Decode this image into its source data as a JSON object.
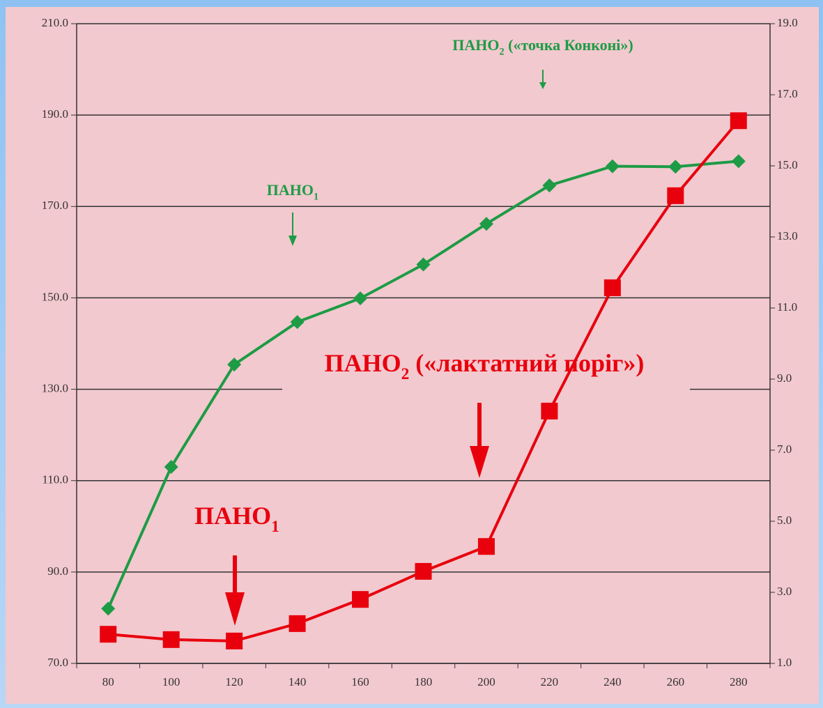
{
  "chart_data": {
    "type": "line",
    "categories": [
      "80",
      "100",
      "120",
      "140",
      "160",
      "180",
      "200",
      "220",
      "240",
      "260",
      "280"
    ],
    "series": [
      {
        "color": "#1d9b45",
        "axis": "y",
        "marker": "diamond",
        "values": [
          82,
          113,
          135.4,
          144.7,
          149.9,
          157.3,
          166.2,
          174.6,
          178.8,
          178.7,
          179.9
        ]
      },
      {
        "color": "#e8000d",
        "axis": "y2",
        "marker": "square",
        "values": [
          1.82,
          1.67,
          1.63,
          2.12,
          2.8,
          3.59,
          4.29,
          8.1,
          11.57,
          14.16,
          16.27
        ]
      }
    ],
    "ylim": [
      70,
      210
    ],
    "yticks": [
      {
        "value": 70,
        "label": "70.0"
      },
      {
        "value": 90,
        "label": "90.0"
      },
      {
        "value": 110,
        "label": "110.0"
      },
      {
        "value": 130,
        "label": "130.0"
      },
      {
        "value": 150,
        "label": "150.0"
      },
      {
        "value": 170,
        "label": "170.0"
      },
      {
        "value": 190,
        "label": "190.0"
      },
      {
        "value": 210,
        "label": "210.0"
      }
    ],
    "y2lim": [
      1,
      19
    ],
    "y2ticks": [
      {
        "value": 1,
        "label": "1.0"
      },
      {
        "value": 3,
        "label": "3.0"
      },
      {
        "value": 5,
        "label": "5.0"
      },
      {
        "value": 7,
        "label": "7.0"
      },
      {
        "value": 9,
        "label": "9.0"
      },
      {
        "value": 11,
        "label": "11.0"
      },
      {
        "value": 13,
        "label": "13.0"
      },
      {
        "value": 15,
        "label": "15.0"
      },
      {
        "value": 17,
        "label": "17.0"
      },
      {
        "value": 19,
        "label": "19.0"
      }
    ],
    "grid": true,
    "annotations": [
      {
        "text": "ПАНО",
        "sub": "2",
        "rest": " («точка Конконі»)",
        "color": "#1d9b45"
      },
      {
        "text": "ПАНО",
        "sub": "1",
        "color": "#1d9b45"
      },
      {
        "text": "ПАНО",
        "sub": "2",
        "rest": " («лактатний поріг»)",
        "color": "#e8000d"
      },
      {
        "text": "ПАНО",
        "sub": "1",
        "color": "#e8000d"
      }
    ]
  }
}
